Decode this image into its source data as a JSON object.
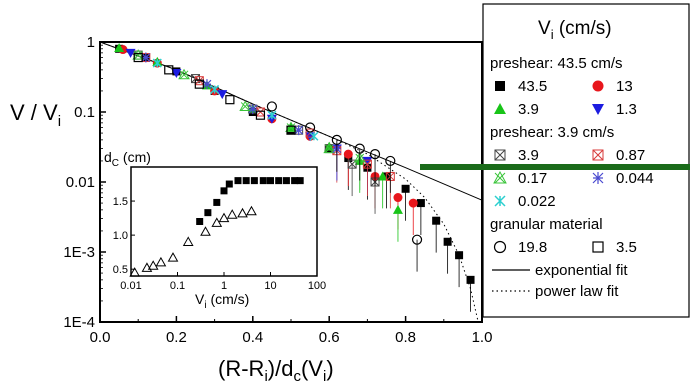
{
  "chart_data": [
    {
      "type": "scatter",
      "title": "",
      "xlabel": "(R-R",
      "xlabel_sub1": "i",
      "xlabel_mid": ")/d",
      "xlabel_sub2": "c",
      "xlabel_end": "(V",
      "xlabel_sub3": "i",
      "xlabel_close": ")",
      "ylabel": "V / V",
      "ylabel_sub": "i",
      "xlim": [
        0.0,
        1.0
      ],
      "ylim": [
        0.0001,
        1
      ],
      "yscale": "log",
      "x_ticks": [
        "0.0",
        "0.2",
        "0.4",
        "0.6",
        "0.8",
        "1.0"
      ],
      "y_ticks": [
        "1E-4",
        "1E-3",
        "0.01",
        "0.1",
        "1"
      ],
      "grid": false,
      "legend": {
        "placement": "right",
        "title": "V",
        "title_sub": "i",
        "title_unit": " (cm/s)",
        "groups": [
          {
            "header": "preshear: 43.5 cm/s",
            "entries": [
              {
                "label": "43.5",
                "marker": "square-filled",
                "color": "#000000"
              },
              {
                "label": "13",
                "marker": "circle-filled",
                "color": "#e8161c"
              },
              {
                "label": "3.9",
                "marker": "triangle-up-filled",
                "color": "#18c418"
              },
              {
                "label": "1.3",
                "marker": "triangle-down-filled",
                "color": "#1c1ce0"
              }
            ]
          },
          {
            "header": "preshear: 3.9 cm/s",
            "entries": [
              {
                "label": "3.9",
                "marker": "square-x",
                "color": "#444444"
              },
              {
                "label": "0.87",
                "marker": "square-x",
                "color": "#d83a3a"
              },
              {
                "label": "0.17",
                "marker": "triangle-x",
                "color": "#39c439"
              },
              {
                "label": "0.044",
                "marker": "star-x",
                "color": "#4a4ad0"
              },
              {
                "label": "0.022",
                "marker": "cross-x",
                "color": "#2ccfcf"
              }
            ]
          },
          {
            "header": "granular material",
            "entries": [
              {
                "label": "19.8",
                "marker": "circle-open",
                "color": "#000000"
              },
              {
                "label": "3.5",
                "marker": "square-open",
                "color": "#000000"
              }
            ]
          }
        ],
        "lines": [
          {
            "label": "exponential fit",
            "style": "solid"
          },
          {
            "label": "power law fit",
            "style": "dotted"
          }
        ]
      },
      "series": [
        {
          "name": "43.5",
          "marker": "square-filled",
          "color": "#000000",
          "x": [
            0.05,
            0.12,
            0.2,
            0.3,
            0.4,
            0.5,
            0.6,
            0.65,
            0.7,
            0.75,
            0.8,
            0.84,
            0.88,
            0.91,
            0.94,
            0.97
          ],
          "y": [
            0.8,
            0.6,
            0.38,
            0.2,
            0.1,
            0.055,
            0.03,
            0.022,
            0.016,
            0.012,
            0.008,
            0.005,
            0.0028,
            0.0014,
            0.0009,
            0.0004
          ]
        },
        {
          "name": "13",
          "marker": "circle-filled",
          "color": "#e8161c",
          "x": [
            0.06,
            0.15,
            0.3,
            0.45,
            0.55,
            0.65,
            0.72,
            0.78,
            0.82
          ],
          "y": [
            0.78,
            0.5,
            0.2,
            0.08,
            0.045,
            0.025,
            0.012,
            0.006,
            0.005
          ]
        },
        {
          "name": "3.9",
          "marker": "triangle-up-filled",
          "color": "#18c418",
          "x": [
            0.05,
            0.15,
            0.28,
            0.4,
            0.5,
            0.6,
            0.68,
            0.74,
            0.78
          ],
          "y": [
            0.82,
            0.52,
            0.24,
            0.11,
            0.06,
            0.032,
            0.02,
            0.012,
            0.004
          ]
        },
        {
          "name": "1.3",
          "marker": "triangle-down-filled",
          "color": "#1c1ce0",
          "x": [
            0.08,
            0.2,
            0.32,
            0.45,
            0.55,
            0.62,
            0.7
          ],
          "y": [
            0.7,
            0.36,
            0.18,
            0.08,
            0.045,
            0.03,
            0.02
          ]
        },
        {
          "name": "3.9",
          "marker": "square-x",
          "color": "#444444",
          "x": [
            0.1,
            0.25,
            0.4,
            0.52,
            0.6,
            0.66,
            0.72
          ],
          "y": [
            0.65,
            0.3,
            0.11,
            0.055,
            0.03,
            0.018,
            0.01
          ]
        },
        {
          "name": "0.87",
          "marker": "square-x",
          "color": "#d83a3a",
          "x": [
            0.12,
            0.26,
            0.42,
            0.55,
            0.62,
            0.7,
            0.76
          ],
          "y": [
            0.6,
            0.28,
            0.1,
            0.05,
            0.028,
            0.018,
            0.012
          ]
        },
        {
          "name": "0.17",
          "marker": "triangle-x",
          "color": "#39c439",
          "x": [
            0.1,
            0.22,
            0.38,
            0.5,
            0.6,
            0.68
          ],
          "y": [
            0.65,
            0.34,
            0.12,
            0.06,
            0.03,
            0.022
          ]
        },
        {
          "name": "0.044",
          "marker": "star-x",
          "color": "#4a4ad0",
          "x": [
            0.12,
            0.28,
            0.4,
            0.52,
            0.62
          ],
          "y": [
            0.6,
            0.25,
            0.11,
            0.055,
            0.03
          ]
        },
        {
          "name": "0.022",
          "marker": "cross-x",
          "color": "#2ccfcf",
          "x": [
            0.15,
            0.3,
            0.45,
            0.56
          ],
          "y": [
            0.5,
            0.21,
            0.09,
            0.045
          ]
        },
        {
          "name": "19.8",
          "marker": "circle-open",
          "color": "#000000",
          "x": [
            0.45,
            0.55,
            0.62,
            0.68,
            0.72,
            0.76,
            0.83
          ],
          "y": [
            0.12,
            0.06,
            0.04,
            0.03,
            0.025,
            0.02,
            0.0015
          ]
        },
        {
          "name": "3.5",
          "marker": "square-open",
          "color": "#000000",
          "x": [
            0.1,
            0.18,
            0.26,
            0.34,
            0.42,
            0.5
          ],
          "y": [
            0.6,
            0.4,
            0.25,
            0.15,
            0.09,
            0.055
          ]
        }
      ],
      "fits": [
        {
          "name": "exponential fit",
          "style": "solid",
          "x": [
            0.0,
            0.2,
            0.4,
            0.6,
            0.8,
            1.0
          ],
          "y": [
            1.0,
            0.4,
            0.13,
            0.045,
            0.016,
            0.0055
          ]
        },
        {
          "name": "power law fit",
          "style": "dotted",
          "x": [
            0.0,
            0.2,
            0.4,
            0.6,
            0.7,
            0.8,
            0.85,
            0.9,
            0.94,
            0.97,
            0.99
          ],
          "y": [
            1.0,
            0.4,
            0.13,
            0.045,
            0.025,
            0.011,
            0.006,
            0.0025,
            0.0009,
            0.0003,
            0.0001
          ]
        }
      ]
    },
    {
      "type": "scatter",
      "title": "",
      "ylabel": "d",
      "ylabel_sub": "C",
      "ylabel_unit": " (cm)",
      "xlabel": "V",
      "xlabel_sub": "i",
      "xlabel_unit": " (cm/s)",
      "xscale": "log",
      "xlim": [
        0.01,
        100
      ],
      "ylim": [
        0.4,
        2.0
      ],
      "x_ticks": [
        "0.01",
        "0.1",
        "1",
        "10",
        "100"
      ],
      "y_ticks": [
        "0.5",
        "1.0",
        "1.5"
      ],
      "series": [
        {
          "marker": "square-filled",
          "color": "#000000",
          "x": [
            0.3,
            0.45,
            0.7,
            1.0,
            1.3,
            2.0,
            3.0,
            4.5,
            7.0,
            10,
            15,
            22,
            33,
            43.5
          ],
          "y": [
            1.2,
            1.33,
            1.48,
            1.65,
            1.75,
            1.8,
            1.8,
            1.8,
            1.8,
            1.8,
            1.8,
            1.8,
            1.8,
            1.8
          ]
        },
        {
          "marker": "triangle-open",
          "color": "#000000",
          "x": [
            0.012,
            0.022,
            0.03,
            0.044,
            0.08,
            0.17,
            0.4,
            0.7,
            1.0,
            1.5,
            2.5,
            3.9
          ],
          "y": [
            0.45,
            0.52,
            0.55,
            0.6,
            0.67,
            0.9,
            1.05,
            1.18,
            1.25,
            1.3,
            1.32,
            1.35
          ]
        }
      ]
    }
  ]
}
